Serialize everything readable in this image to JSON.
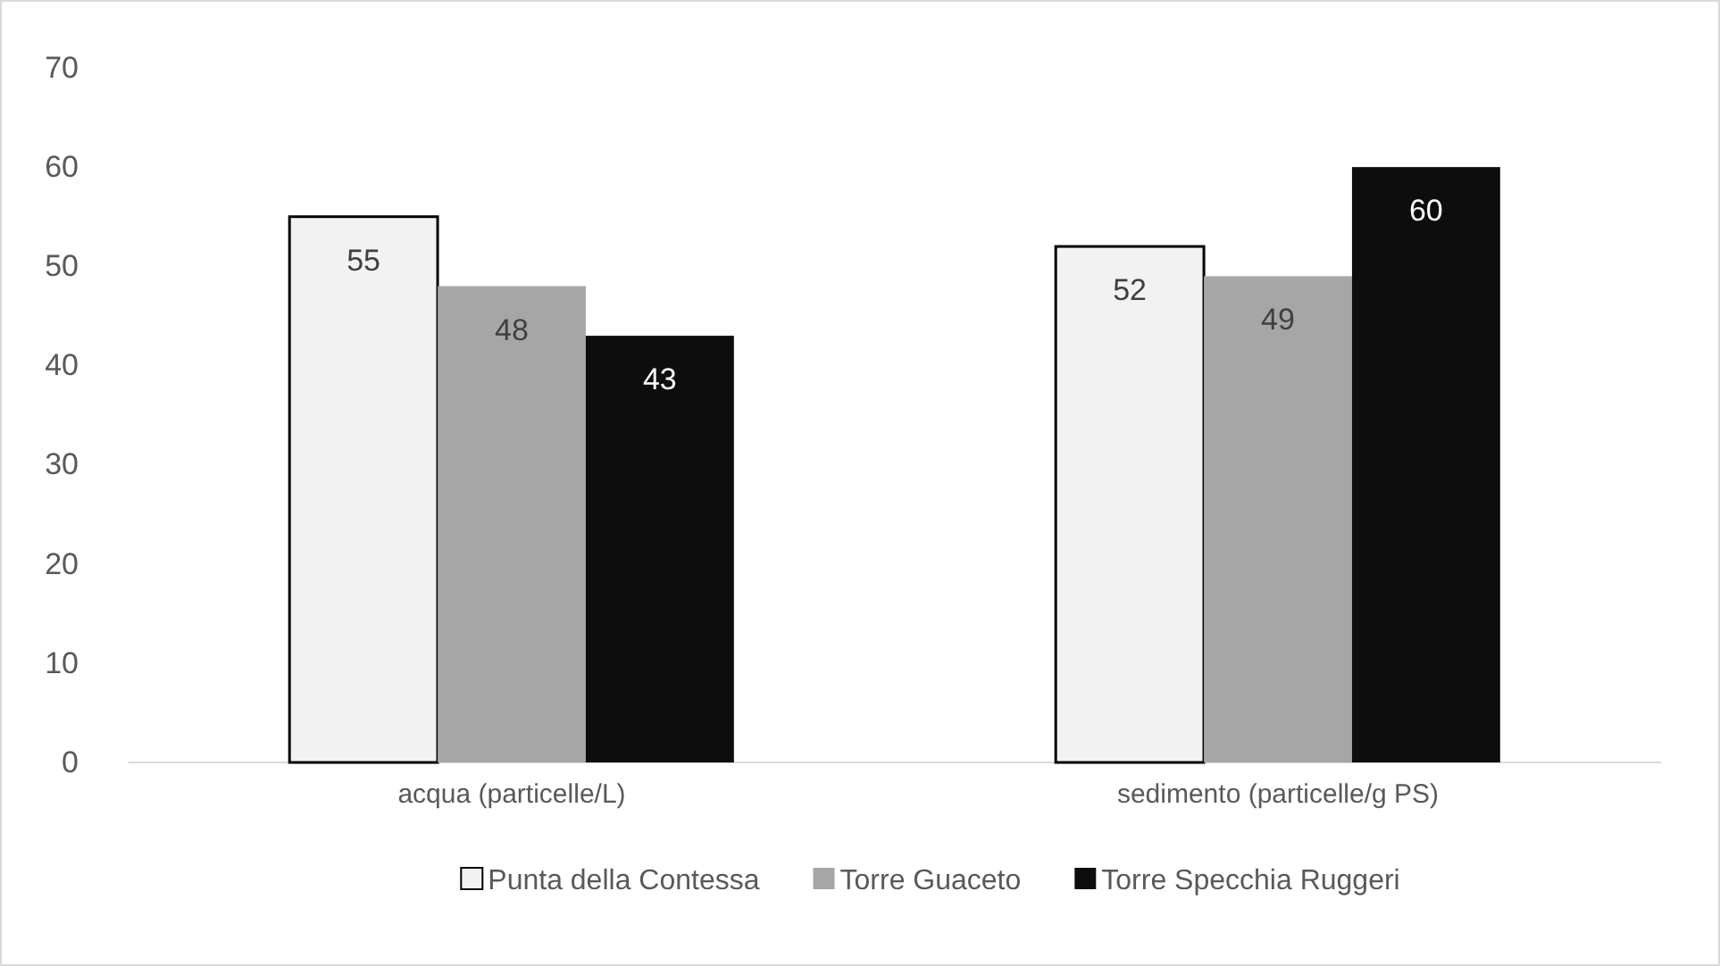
{
  "chart_data": {
    "type": "bar",
    "categories": [
      "acqua (particelle/L)",
      "sedimento (particelle/g PS)"
    ],
    "series": [
      {
        "name": "Punta della Contessa",
        "color": "#f2f2f2",
        "values": [
          55,
          52
        ]
      },
      {
        "name": "Torre Guaceto",
        "color": "#a6a6a6",
        "values": [
          48,
          49
        ]
      },
      {
        "name": "Torre Specchia Ruggeri",
        "color": "#0d0d0d",
        "values": [
          43,
          60
        ]
      }
    ],
    "ylim": [
      0,
      70
    ],
    "yticks": [
      0,
      10,
      20,
      30,
      40,
      50,
      60,
      70
    ],
    "grid": false,
    "legend": "bottom",
    "data_labels": true
  }
}
